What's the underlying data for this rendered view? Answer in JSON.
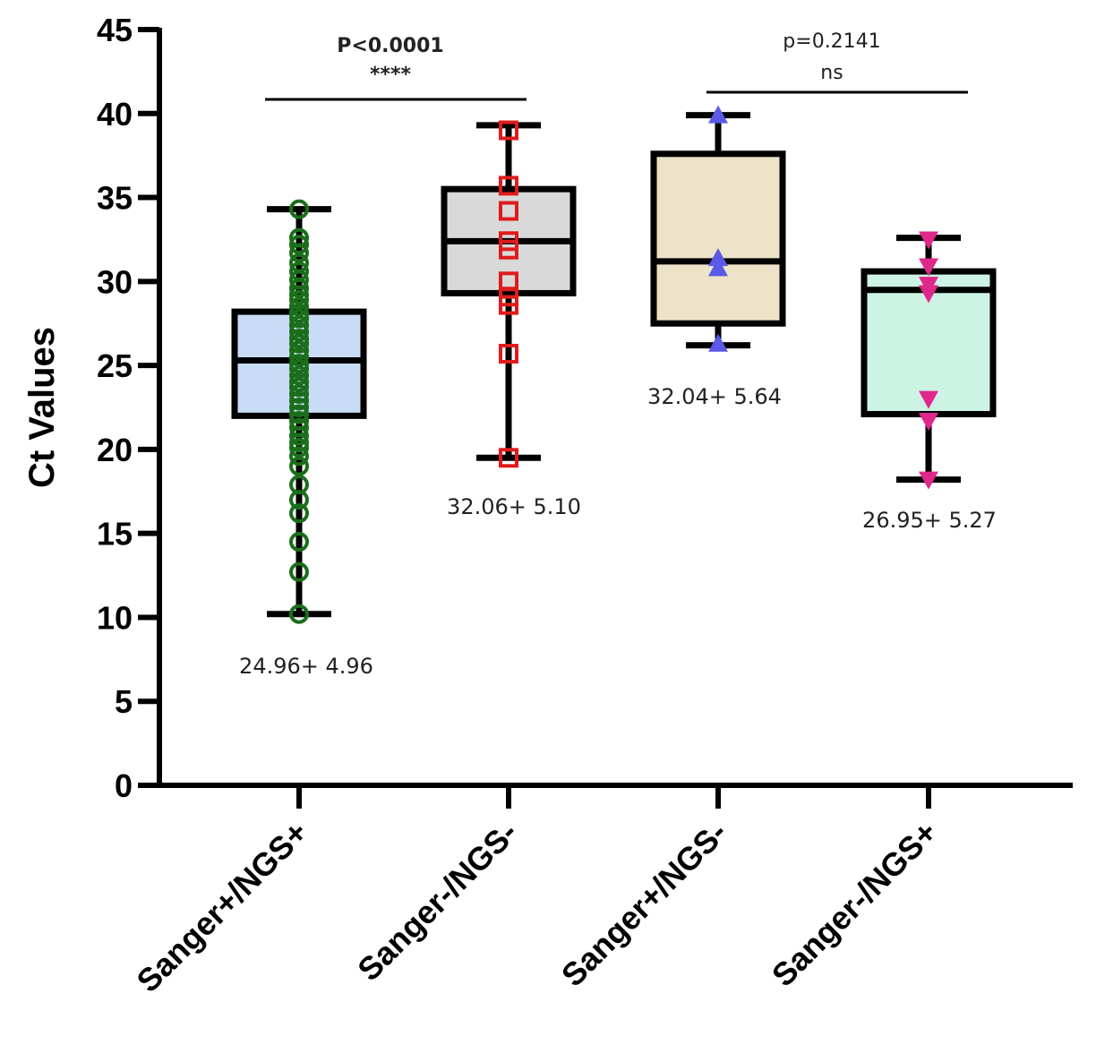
{
  "chart_data": {
    "type": "box",
    "ylabel": "Ct Values",
    "xlabel": "",
    "ylim": [
      0,
      45
    ],
    "yticks": [
      0,
      5,
      10,
      15,
      20,
      25,
      30,
      35,
      40,
      45
    ],
    "grid": false,
    "categories": [
      "Sanger+/NGS+",
      "Sanger-/NGS-",
      "Sanger+/NGS-",
      "Sanger-/NGS+"
    ],
    "groups": [
      {
        "name": "Sanger+/NGS+",
        "min": 10.2,
        "q1": 22.0,
        "median": 25.3,
        "q3": 28.2,
        "max": 34.3,
        "fill": "#c9dcf5",
        "marker": "circle",
        "marker_color": "#1b6e1b",
        "stat_label": "24.96+ 4.96",
        "points": [
          10.2,
          12.7,
          14.5,
          16.2,
          17.0,
          17.9,
          19.0,
          19.6,
          20.1,
          20.4,
          20.8,
          21.3,
          21.7,
          22.1,
          22.5,
          22.9,
          23.3,
          23.7,
          24.0,
          24.4,
          24.8,
          25.1,
          25.5,
          25.9,
          26.3,
          26.6,
          27.0,
          27.4,
          27.8,
          28.1,
          28.5,
          28.9,
          29.2,
          29.6,
          30.1,
          30.6,
          31.1,
          31.7,
          32.2,
          32.6,
          34.3
        ]
      },
      {
        "name": "Sanger-/NGS-",
        "min": 19.5,
        "q1": 29.3,
        "median": 32.4,
        "q3": 35.5,
        "max": 39.3,
        "fill": "#d9d9d9",
        "marker": "square",
        "marker_color": "#e01b1b",
        "stat_label": "32.06+ 5.10",
        "points": [
          19.5,
          25.7,
          28.6,
          29.1,
          30.0,
          31.9,
          32.4,
          34.2,
          35.7,
          39.0
        ]
      },
      {
        "name": "Sanger+/NGS-",
        "min": 26.2,
        "q1": 27.5,
        "median": 31.2,
        "q3": 37.6,
        "max": 39.9,
        "fill": "#ede3c8",
        "marker": "triangle-up",
        "marker_color": "#5a5ae6",
        "stat_label": "32.04+ 5.64",
        "points": [
          26.3,
          30.8,
          31.4,
          39.9
        ]
      },
      {
        "name": "Sanger-/NGS+",
        "min": 18.2,
        "q1": 22.1,
        "median": 29.5,
        "q3": 30.6,
        "max": 32.6,
        "fill": "#cdf3e4",
        "marker": "triangle-down",
        "marker_color": "#e0278b",
        "stat_label": "26.95+ 5.27",
        "points": [
          18.2,
          21.7,
          23.0,
          29.3,
          29.8,
          30.9,
          32.5
        ]
      }
    ],
    "comparisons": [
      {
        "from": 0,
        "to": 1,
        "p_label": "P<0.0001",
        "sig_label": "****",
        "bold": true
      },
      {
        "from": 2,
        "to": 3,
        "p_label": "p=0.2141",
        "sig_label": "ns",
        "bold": false
      }
    ]
  }
}
